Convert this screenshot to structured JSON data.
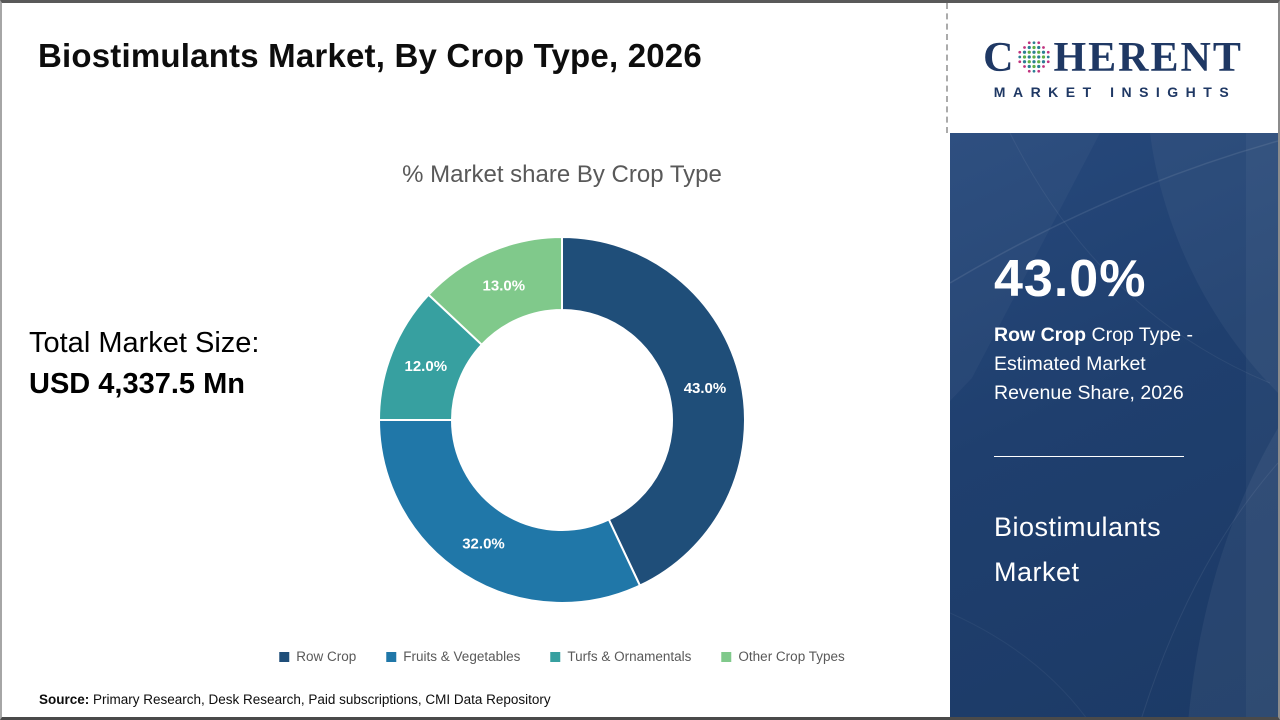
{
  "header": {
    "title": "Biostimulants Market, By Crop Type, 2026"
  },
  "logo": {
    "name": "Coherent Market Insights",
    "word_start": "C",
    "word_end": "HERENT",
    "subtitle": "MARKET INSIGHTS",
    "navy": "#1F3864",
    "globe_colors": {
      "pink": "#C0337E",
      "teal": "#2B7F92",
      "green": "#5FAE46"
    }
  },
  "left_panel": {
    "total_label": "Total Market Size:",
    "total_value": "USD 4,337.5 Mn"
  },
  "chart_data": {
    "type": "pie",
    "subtype": "donut",
    "title": "% Market share By Crop Type",
    "categories": [
      "Row Crop",
      "Fruits & Vegetables",
      "Turfs & Ornamentals",
      "Other Crop Types"
    ],
    "values": [
      43.0,
      32.0,
      12.0,
      13.0
    ],
    "data_labels": [
      "43.0%",
      "32.0%",
      "12.0%",
      "13.0%"
    ],
    "colors": [
      "#1F4E79",
      "#2077A8",
      "#37A0A0",
      "#80C98B"
    ],
    "start_angle_deg": 0,
    "direction": "clockwise",
    "inner_radius_ratio": 0.6,
    "legend_position": "bottom"
  },
  "sidebar": {
    "background": "#1E3F6E",
    "stat_value": "43.0%",
    "stat_desc_bold": "Row Crop",
    "stat_desc_rest": " Crop Type - Estimated Market Revenue Share, 2026",
    "product_title": "Biostimulants Market"
  },
  "footer": {
    "source_label": "Source:",
    "source_text": " Primary Research, Desk Research, Paid subscriptions, CMI Data Repository"
  }
}
